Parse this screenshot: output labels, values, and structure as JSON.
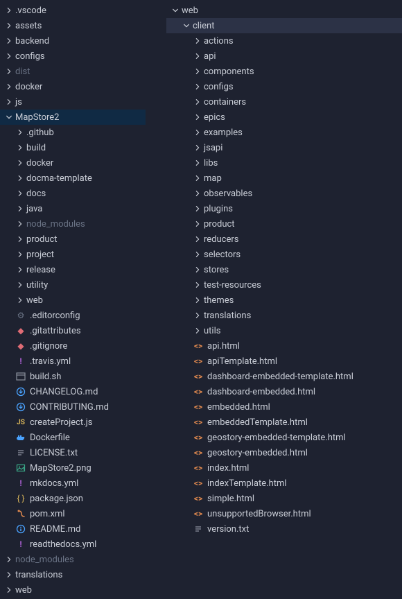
{
  "left": [
    {
      "t": "folder",
      "label": ".vscode",
      "open": false,
      "depth": 0
    },
    {
      "t": "folder",
      "label": "assets",
      "open": false,
      "depth": 0
    },
    {
      "t": "folder",
      "label": "backend",
      "open": false,
      "depth": 0
    },
    {
      "t": "folder",
      "label": "configs",
      "open": false,
      "depth": 0
    },
    {
      "t": "folder",
      "label": "dist",
      "open": false,
      "depth": 0,
      "dim": true
    },
    {
      "t": "folder",
      "label": "docker",
      "open": false,
      "depth": 0
    },
    {
      "t": "folder",
      "label": "js",
      "open": false,
      "depth": 0
    },
    {
      "t": "folder",
      "label": "MapStore2",
      "open": true,
      "depth": 0,
      "selected": true
    },
    {
      "t": "folder",
      "label": ".github",
      "open": false,
      "depth": 1
    },
    {
      "t": "folder",
      "label": "build",
      "open": false,
      "depth": 1
    },
    {
      "t": "folder",
      "label": "docker",
      "open": false,
      "depth": 1
    },
    {
      "t": "folder",
      "label": "docma-template",
      "open": false,
      "depth": 1
    },
    {
      "t": "folder",
      "label": "docs",
      "open": false,
      "depth": 1
    },
    {
      "t": "folder",
      "label": "java",
      "open": false,
      "depth": 1
    },
    {
      "t": "folder",
      "label": "node_modules",
      "open": false,
      "depth": 1,
      "dim": true
    },
    {
      "t": "folder",
      "label": "product",
      "open": false,
      "depth": 1
    },
    {
      "t": "folder",
      "label": "project",
      "open": false,
      "depth": 1
    },
    {
      "t": "folder",
      "label": "release",
      "open": false,
      "depth": 1
    },
    {
      "t": "folder",
      "label": "utility",
      "open": false,
      "depth": 1
    },
    {
      "t": "folder",
      "label": "web",
      "open": false,
      "depth": 1
    },
    {
      "t": "file",
      "label": ".editorconfig",
      "icon": "gear",
      "depth": 1
    },
    {
      "t": "file",
      "label": ".gitattributes",
      "icon": "git",
      "depth": 1
    },
    {
      "t": "file",
      "label": ".gitignore",
      "icon": "git",
      "depth": 1
    },
    {
      "t": "file",
      "label": ".travis.yml",
      "icon": "yml",
      "depth": 1
    },
    {
      "t": "file",
      "label": "build.sh",
      "icon": "sh",
      "depth": 1
    },
    {
      "t": "file",
      "label": "CHANGELOG.md",
      "icon": "md",
      "depth": 1
    },
    {
      "t": "file",
      "label": "CONTRIBUTING.md",
      "icon": "md",
      "depth": 1
    },
    {
      "t": "file",
      "label": "createProject.js",
      "icon": "js",
      "depth": 1
    },
    {
      "t": "file",
      "label": "Dockerfile",
      "icon": "docker",
      "depth": 1
    },
    {
      "t": "file",
      "label": "LICENSE.txt",
      "icon": "txt",
      "depth": 1
    },
    {
      "t": "file",
      "label": "MapStore2.png",
      "icon": "img",
      "depth": 1
    },
    {
      "t": "file",
      "label": "mkdocs.yml",
      "icon": "yml",
      "depth": 1
    },
    {
      "t": "file",
      "label": "package.json",
      "icon": "json",
      "depth": 1
    },
    {
      "t": "file",
      "label": "pom.xml",
      "icon": "xml",
      "depth": 1
    },
    {
      "t": "file",
      "label": "README.md",
      "icon": "info",
      "depth": 1
    },
    {
      "t": "file",
      "label": "readthedocs.yml",
      "icon": "yml",
      "depth": 1
    },
    {
      "t": "folder",
      "label": "node_modules",
      "open": false,
      "depth": 0,
      "dim": true
    },
    {
      "t": "folder",
      "label": "translations",
      "open": false,
      "depth": 0
    },
    {
      "t": "folder",
      "label": "web",
      "open": false,
      "depth": 0
    }
  ],
  "right": [
    {
      "t": "folder",
      "label": "web",
      "open": true,
      "depth": 0
    },
    {
      "t": "folder",
      "label": "client",
      "open": true,
      "depth": 1,
      "selectedLight": true
    },
    {
      "t": "folder",
      "label": "actions",
      "open": false,
      "depth": 2
    },
    {
      "t": "folder",
      "label": "api",
      "open": false,
      "depth": 2
    },
    {
      "t": "folder",
      "label": "components",
      "open": false,
      "depth": 2
    },
    {
      "t": "folder",
      "label": "configs",
      "open": false,
      "depth": 2
    },
    {
      "t": "folder",
      "label": "containers",
      "open": false,
      "depth": 2
    },
    {
      "t": "folder",
      "label": "epics",
      "open": false,
      "depth": 2
    },
    {
      "t": "folder",
      "label": "examples",
      "open": false,
      "depth": 2
    },
    {
      "t": "folder",
      "label": "jsapi",
      "open": false,
      "depth": 2
    },
    {
      "t": "folder",
      "label": "libs",
      "open": false,
      "depth": 2
    },
    {
      "t": "folder",
      "label": "map",
      "open": false,
      "depth": 2
    },
    {
      "t": "folder",
      "label": "observables",
      "open": false,
      "depth": 2
    },
    {
      "t": "folder",
      "label": "plugins",
      "open": false,
      "depth": 2
    },
    {
      "t": "folder",
      "label": "product",
      "open": false,
      "depth": 2
    },
    {
      "t": "folder",
      "label": "reducers",
      "open": false,
      "depth": 2
    },
    {
      "t": "folder",
      "label": "selectors",
      "open": false,
      "depth": 2
    },
    {
      "t": "folder",
      "label": "stores",
      "open": false,
      "depth": 2
    },
    {
      "t": "folder",
      "label": "test-resources",
      "open": false,
      "depth": 2
    },
    {
      "t": "folder",
      "label": "themes",
      "open": false,
      "depth": 2
    },
    {
      "t": "folder",
      "label": "translations",
      "open": false,
      "depth": 2
    },
    {
      "t": "folder",
      "label": "utils",
      "open": false,
      "depth": 2
    },
    {
      "t": "file",
      "label": "api.html",
      "icon": "html",
      "depth": 2
    },
    {
      "t": "file",
      "label": "apiTemplate.html",
      "icon": "html",
      "depth": 2
    },
    {
      "t": "file",
      "label": "dashboard-embedded-template.html",
      "icon": "html",
      "depth": 2
    },
    {
      "t": "file",
      "label": "dashboard-embedded.html",
      "icon": "html",
      "depth": 2
    },
    {
      "t": "file",
      "label": "embedded.html",
      "icon": "html",
      "depth": 2
    },
    {
      "t": "file",
      "label": "embeddedTemplate.html",
      "icon": "html",
      "depth": 2
    },
    {
      "t": "file",
      "label": "geostory-embedded-template.html",
      "icon": "html",
      "depth": 2
    },
    {
      "t": "file",
      "label": "geostory-embedded.html",
      "icon": "html",
      "depth": 2
    },
    {
      "t": "file",
      "label": "index.html",
      "icon": "html",
      "depth": 2
    },
    {
      "t": "file",
      "label": "indexTemplate.html",
      "icon": "html",
      "depth": 2
    },
    {
      "t": "file",
      "label": "simple.html",
      "icon": "html",
      "depth": 2
    },
    {
      "t": "file",
      "label": "unsupportedBrowser.html",
      "icon": "html",
      "depth": 2
    },
    {
      "t": "file",
      "label": "version.txt",
      "icon": "txt",
      "depth": 2
    }
  ]
}
